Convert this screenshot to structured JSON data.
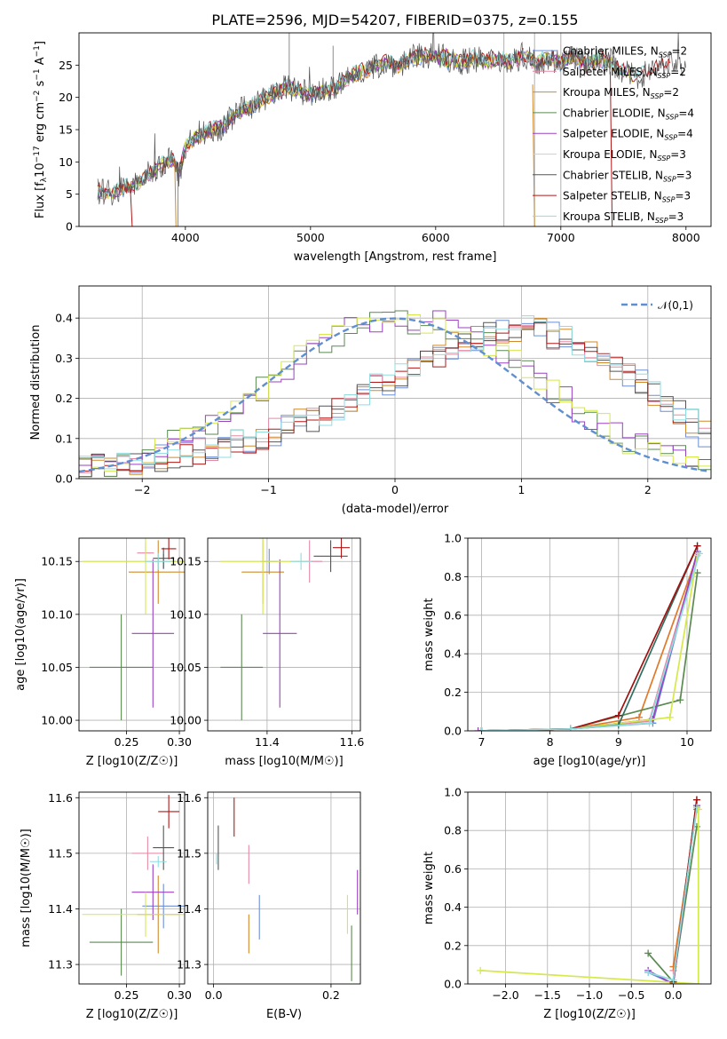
{
  "figure_title": "PLATE=2596, MJD=54207, FIBERID=0375, z=0.155",
  "colors": {
    "series": [
      "#6b8fd6",
      "#e58aa6",
      "#d08a2a",
      "#5a8a50",
      "#9b40c0",
      "#d6e84a",
      "#555555",
      "#b01818",
      "#8fdde0"
    ],
    "gaussian": "#5f8fd0",
    "grid": "#b0b0b0",
    "ssp_extra": [
      "#e07a2a",
      "#3a8a7a"
    ]
  },
  "legend_names": [
    "Chabrier MILES, N_SSP=2",
    "Salpeter MILES, N_SSP=2",
    "Kroupa MILES, N_SSP=2",
    "Chabrier ELODIE, N_SSP=4",
    "Salpeter ELODIE, N_SSP=4",
    "Kroupa ELODIE, N_SSP=3",
    "Chabrier STELIB, N_SSP=3",
    "Salpeter STELIB, N_SSP=3",
    "Kroupa STELIB, N_SSP=3"
  ],
  "chart_data": [
    {
      "id": "spectrum",
      "type": "line",
      "title": "PLATE=2596, MJD=54207, FIBERID=0375, z=0.155",
      "xlabel": "wavelength [Angstrom, rest frame]",
      "ylabel": "Flux [f_λ 10^-17 erg cm^-2 s^-1 A^-1]",
      "xlim": [
        3150,
        8200
      ],
      "ylim": [
        0,
        30
      ],
      "xticks": [
        4000,
        5000,
        6000,
        7000,
        8000
      ],
      "yticks": [
        0,
        5,
        10,
        15,
        20,
        25
      ],
      "grid": false,
      "legend": "top-right",
      "vlines": [
        6545,
        6790,
        7000
      ],
      "continuum": {
        "x": [
          3300,
          3400,
          3500,
          3600,
          3700,
          3800,
          3900,
          3950,
          4000,
          4100,
          4200,
          4300,
          4400,
          4500,
          4600,
          4700,
          4800,
          4900,
          5000,
          5100,
          5200,
          5300,
          5400,
          5500,
          5600,
          5700,
          5800,
          5900,
          6000,
          6100,
          6200,
          6300,
          6400,
          6500,
          6600,
          6700,
          6800,
          6900,
          7000,
          7100,
          7200,
          7300,
          7400,
          7500,
          7600,
          7700,
          7800,
          7900,
          8000
        ],
        "y": [
          5.5,
          5.2,
          5.8,
          6.5,
          8.0,
          9.5,
          10.5,
          8.0,
          12.5,
          14.0,
          15.0,
          15.5,
          17.5,
          18.5,
          19.5,
          20.5,
          21.5,
          21.0,
          20.5,
          21.0,
          21.5,
          23.0,
          24.0,
          24.5,
          25.5,
          25.0,
          26.0,
          26.5,
          26.5,
          26.0,
          25.5,
          26.0,
          25.5,
          26.0,
          25.5,
          26.5,
          25.5,
          26.0,
          25.5,
          26.5,
          25.0,
          26.0,
          25.5,
          24.0,
          23.0,
          24.0,
          25.0,
          25.5,
          24.5
        ]
      }
    },
    {
      "id": "residuals",
      "type": "line",
      "xlabel": "(data-model)/error",
      "ylabel": "Normed distribution",
      "xlim": [
        -2.5,
        2.5
      ],
      "ylim": [
        0,
        0.48
      ],
      "xticks": [
        -2,
        -1,
        0,
        1,
        2
      ],
      "yticks": [
        0.0,
        0.1,
        0.2,
        0.3,
        0.4
      ],
      "grid": true,
      "legend": "top-right",
      "gaussian_label": "𝒩(0,1)",
      "centered_profile": {
        "x": [
          -2.5,
          -2.0,
          -1.5,
          -1.0,
          -0.5,
          0.0,
          0.5,
          1.0,
          1.5,
          2.0,
          2.5
        ],
        "y": [
          0.02,
          0.05,
          0.13,
          0.24,
          0.36,
          0.4,
          0.38,
          0.28,
          0.16,
          0.07,
          0.03
        ]
      },
      "shifted_profile": {
        "x": [
          -2.5,
          -2.0,
          -1.5,
          -1.0,
          -0.5,
          0.0,
          0.5,
          1.0,
          1.5,
          2.0,
          2.5
        ],
        "y": [
          0.02,
          0.04,
          0.07,
          0.11,
          0.17,
          0.25,
          0.34,
          0.38,
          0.33,
          0.23,
          0.1
        ]
      }
    },
    {
      "id": "age-vs-Z",
      "type": "scatter",
      "xlabel": "Z [log10(Z/Z☉)]",
      "ylabel": "age [log10(age/yr)]",
      "xlim": [
        0.205,
        0.305
      ],
      "ylim": [
        9.99,
        10.172
      ],
      "xticks": [
        0.25,
        0.3
      ],
      "yticks": [
        10.0,
        10.05,
        10.1,
        10.15
      ],
      "grid": true,
      "points": [
        {
          "x": 0.285,
          "y": 10.15,
          "xerr": 0.012,
          "yerr": 0.007
        },
        {
          "x": 0.268,
          "y": 10.158,
          "xerr": 0.008,
          "yerr": 0.01
        },
        {
          "x": 0.28,
          "y": 10.14,
          "xerr": 0.028,
          "yerr": 0.03
        },
        {
          "x": 0.245,
          "y": 10.05,
          "xerr": 0.03,
          "yerr": 0.05
        },
        {
          "x": 0.275,
          "y": 10.082,
          "xerr": 0.02,
          "yerr": 0.07
        },
        {
          "x": 0.268,
          "y": 10.15,
          "xerr": 0.06,
          "yerr": 0.05
        },
        {
          "x": 0.285,
          "y": 10.153,
          "xerr": 0.01,
          "yerr": 0.01
        },
        {
          "x": 0.29,
          "y": 10.162,
          "xerr": 0.007,
          "yerr": 0.01
        },
        {
          "x": 0.28,
          "y": 10.15,
          "xerr": 0.012,
          "yerr": 0.008
        }
      ]
    },
    {
      "id": "age-vs-mass",
      "type": "scatter",
      "xlabel": "mass [log10(M/M☉)]",
      "ylabel": "",
      "xlim": [
        11.26,
        11.62
      ],
      "ylim": [
        9.99,
        10.172
      ],
      "xticks": [
        11.4,
        11.6
      ],
      "yticks": [
        10.0,
        10.05,
        10.1,
        10.15
      ],
      "grid": true,
      "points": [
        {
          "x": 11.405,
          "y": 10.15,
          "xerr": 0.02,
          "yerr": 0.012
        },
        {
          "x": 11.5,
          "y": 10.15,
          "xerr": 0.03,
          "yerr": 0.02
        },
        {
          "x": 11.39,
          "y": 10.14,
          "xerr": 0.05,
          "yerr": 0.03
        },
        {
          "x": 11.34,
          "y": 10.05,
          "xerr": 0.05,
          "yerr": 0.05
        },
        {
          "x": 11.43,
          "y": 10.082,
          "xerr": 0.04,
          "yerr": 0.07
        },
        {
          "x": 11.39,
          "y": 10.15,
          "xerr": 0.1,
          "yerr": 0.05
        },
        {
          "x": 11.55,
          "y": 10.155,
          "xerr": 0.04,
          "yerr": 0.015
        },
        {
          "x": 11.575,
          "y": 10.163,
          "xerr": 0.02,
          "yerr": 0.01
        },
        {
          "x": 11.48,
          "y": 10.15,
          "xerr": 0.025,
          "yerr": 0.008
        }
      ]
    },
    {
      "id": "mass-weight-vs-age",
      "type": "line",
      "xlabel": "age [log10(age/yr)]",
      "ylabel": "mass weight",
      "xlim": [
        6.8,
        10.35
      ],
      "ylim": [
        0,
        1.0
      ],
      "xticks": [
        7,
        8,
        9,
        10
      ],
      "yticks": [
        0.0,
        0.2,
        0.4,
        0.6,
        0.8,
        1.0
      ],
      "grid": true,
      "series": [
        {
          "x": [
            7.0,
            8.3,
            9.5,
            10.15
          ],
          "y": [
            0.0,
            0.01,
            0.04,
            0.93
          ]
        },
        {
          "x": [
            7.0,
            8.3,
            9.45,
            10.15
          ],
          "y": [
            0.0,
            0.01,
            0.05,
            0.92
          ]
        },
        {
          "x": [
            7.0,
            8.3,
            9.3,
            10.15
          ],
          "y": [
            0.0,
            0.01,
            0.07,
            0.91
          ]
        },
        {
          "x": [
            7.0,
            8.3,
            9.9,
            10.15
          ],
          "y": [
            0.0,
            0.01,
            0.16,
            0.82
          ]
        },
        {
          "x": [
            6.95,
            8.3,
            9.5,
            10.15
          ],
          "y": [
            0.0,
            0.01,
            0.06,
            0.93
          ]
        },
        {
          "x": [
            7.0,
            8.3,
            9.75,
            10.15
          ],
          "y": [
            0.0,
            0.01,
            0.07,
            0.91
          ]
        },
        {
          "x": [
            7.0,
            8.3,
            9.0,
            10.15
          ],
          "y": [
            0.0,
            0.01,
            0.03,
            0.96
          ]
        },
        {
          "x": [
            7.0,
            8.3,
            9.0,
            10.15
          ],
          "y": [
            0.0,
            0.01,
            0.08,
            0.96
          ]
        },
        {
          "x": [
            7.0,
            8.3,
            9.45,
            10.18
          ],
          "y": [
            0.0,
            0.01,
            0.04,
            0.92
          ]
        }
      ]
    },
    {
      "id": "mass-vs-Z",
      "type": "scatter",
      "xlabel": "Z [log10(Z/Z☉)]",
      "ylabel": "mass [log10(M/M☉)]",
      "xlim": [
        0.205,
        0.305
      ],
      "ylim": [
        11.265,
        11.61
      ],
      "xticks": [
        0.25,
        0.3
      ],
      "yticks": [
        11.3,
        11.4,
        11.5,
        11.6
      ],
      "grid": true,
      "points": [
        {
          "x": 0.285,
          "y": 11.405,
          "xerr": 0.02,
          "yerr": 0.04
        },
        {
          "x": 0.27,
          "y": 11.5,
          "xerr": 0.015,
          "yerr": 0.03
        },
        {
          "x": 0.28,
          "y": 11.39,
          "xerr": 0.02,
          "yerr": 0.07
        },
        {
          "x": 0.245,
          "y": 11.34,
          "xerr": 0.03,
          "yerr": 0.06
        },
        {
          "x": 0.275,
          "y": 11.43,
          "xerr": 0.02,
          "yerr": 0.05
        },
        {
          "x": 0.268,
          "y": 11.39,
          "xerr": 0.06,
          "yerr": 0.04
        },
        {
          "x": 0.285,
          "y": 11.51,
          "xerr": 0.01,
          "yerr": 0.04
        },
        {
          "x": 0.29,
          "y": 11.575,
          "xerr": 0.01,
          "yerr": 0.03
        },
        {
          "x": 0.28,
          "y": 11.485,
          "xerr": 0.008,
          "yerr": 0.01
        }
      ]
    },
    {
      "id": "mass-vs-ebv",
      "type": "scatter",
      "xlabel": "E(B-V)",
      "ylabel": "",
      "xlim": [
        -0.01,
        0.25
      ],
      "ylim": [
        11.265,
        11.61
      ],
      "xticks": [
        0.0,
        0.2
      ],
      "yticks": [
        11.3,
        11.4,
        11.5,
        11.6
      ],
      "grid": true,
      "points": [
        {
          "x": 0.078,
          "y": 11.385,
          "yerr": 0.04
        },
        {
          "x": 0.06,
          "y": 11.48,
          "yerr": 0.035
        },
        {
          "x": 0.06,
          "y": 11.355,
          "yerr": 0.035
        },
        {
          "x": 0.235,
          "y": 11.32,
          "yerr": 0.05
        },
        {
          "x": 0.245,
          "y": 11.43,
          "yerr": 0.04
        },
        {
          "x": 0.228,
          "y": 11.39,
          "yerr": 0.035
        },
        {
          "x": 0.008,
          "y": 11.51,
          "yerr": 0.04
        },
        {
          "x": 0.035,
          "y": 11.565,
          "yerr": 0.035
        },
        {
          "x": 0.005,
          "y": 11.49,
          "yerr": 0.01
        }
      ]
    },
    {
      "id": "mass-weight-vs-Z",
      "type": "line",
      "xlabel": "Z [log10(Z/Z☉)]",
      "ylabel": "mass weight",
      "xlim": [
        -2.45,
        0.45
      ],
      "ylim": [
        0,
        1.0
      ],
      "xticks": [
        -2.0,
        -1.5,
        -1.0,
        -0.5,
        0.0
      ],
      "xtick_labels": [
        "−2.0",
        "−1.5",
        "−1.0",
        "−0.5",
        "0.0"
      ],
      "yticks": [
        0.0,
        0.2,
        0.4,
        0.6,
        0.8,
        1.0
      ],
      "grid": true,
      "series": [
        {
          "x": [
            -0.3,
            0.0,
            0.28
          ],
          "y": [
            0.06,
            0.0,
            0.93
          ]
        },
        {
          "x": [
            0.0,
            0.28
          ],
          "y": [
            0.07,
            0.92
          ]
        },
        {
          "x": [
            0.0,
            0.28
          ],
          "y": [
            0.09,
            0.91
          ]
        },
        {
          "x": [
            -0.3,
            0.0,
            0.28
          ],
          "y": [
            0.16,
            0.01,
            0.82
          ]
        },
        {
          "x": [
            -0.3,
            0.0,
            0.28
          ],
          "y": [
            0.07,
            0.0,
            0.93
          ]
        },
        {
          "x": [
            -2.3,
            0.3,
            0.3
          ],
          "y": [
            0.07,
            0.0,
            0.91
          ]
        },
        {
          "x": [
            0.0,
            0.28
          ],
          "y": [
            0.01,
            0.96
          ]
        },
        {
          "x": [
            0.0,
            0.28
          ],
          "y": [
            0.01,
            0.96
          ]
        },
        {
          "x": [
            -0.3,
            0.0,
            0.28
          ],
          "y": [
            0.06,
            0.02,
            0.92
          ]
        }
      ]
    }
  ]
}
